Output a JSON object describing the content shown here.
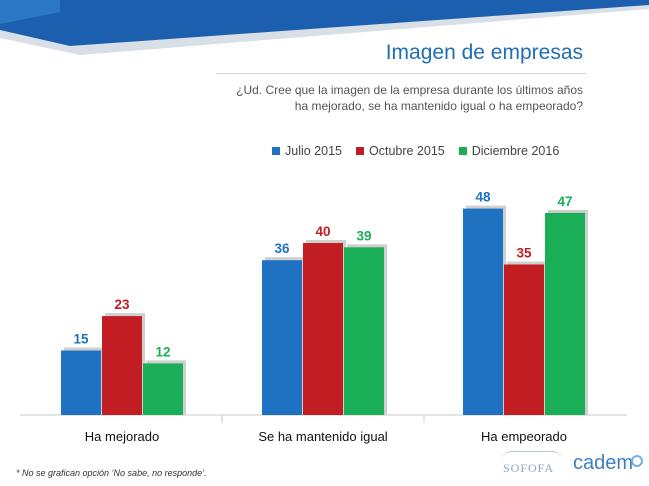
{
  "page": {
    "title": "Imagen de empresas",
    "question_line1": "¿Ud. Cree que la imagen de la empresa durante los últimos años",
    "question_line2": "ha mejorado, se ha mantenido igual o ha empeorado?",
    "footnote": "* No se grafican opción ‘No sabe, no responde’.",
    "logo_left": "SOFOFA",
    "logo_right": "cadem"
  },
  "colors": {
    "julio": "#1f72c1",
    "octubre": "#c11d22",
    "diciembre": "#1aaf57",
    "banner": "#1c5fae"
  },
  "chart_data": {
    "type": "bar",
    "title": "Imagen de empresas",
    "categories": [
      "Ha mejorado",
      "Se ha mantenido igual",
      "Ha empeorado"
    ],
    "series": [
      {
        "name": "Julio 2015",
        "values": [
          15,
          36,
          48
        ]
      },
      {
        "name": "Octubre 2015",
        "values": [
          23,
          40,
          35
        ]
      },
      {
        "name": "Diciembre 2016",
        "values": [
          12,
          39,
          47
        ]
      }
    ],
    "xlabel": "",
    "ylabel": "",
    "ylim": [
      0,
      50
    ],
    "grid": false,
    "legend": "top-center"
  }
}
